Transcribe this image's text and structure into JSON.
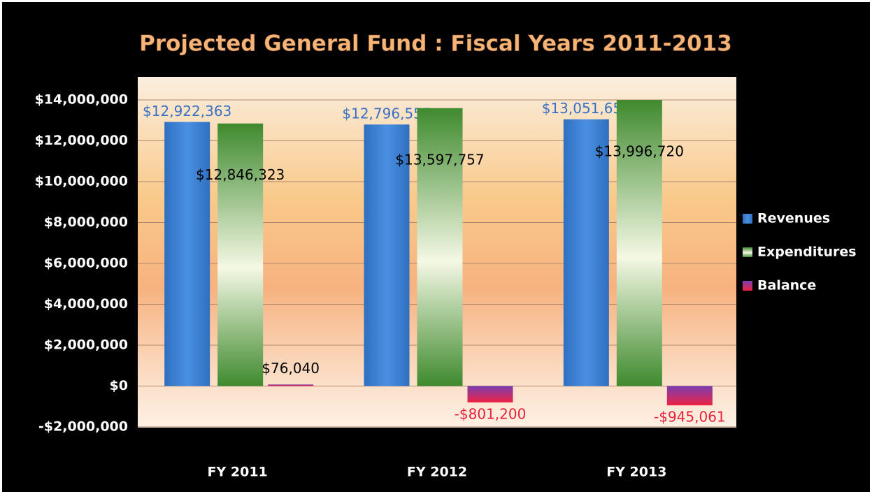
{
  "chart_data": {
    "type": "bar",
    "title": "Projected General Fund : Fiscal Years 2011-2013",
    "categories": [
      "FY 2011",
      "FY 2012",
      "FY 2013"
    ],
    "series": [
      {
        "name": "Revenues",
        "color": "#3a7fd0",
        "values": [
          12922363,
          12796557,
          13051659
        ],
        "value_labels": [
          "$12,922,363",
          "$12,796,557",
          "$13,051,659"
        ]
      },
      {
        "name": "Expenditures",
        "color": "#4e9a38",
        "values": [
          12846323,
          13597757,
          13996720
        ],
        "value_labels": [
          "$12,846,323",
          "$13,597,757",
          "$13,996,720"
        ]
      },
      {
        "name": "Balance",
        "color": "#b03070",
        "values": [
          76040,
          -801200,
          -945061
        ],
        "value_labels": [
          "$76,040",
          "-$801,200",
          "-$945,061"
        ]
      }
    ],
    "ylim": [
      -2000000,
      14000000
    ],
    "yticks": [
      {
        "value": -2000000,
        "label": "-$2,000,000"
      },
      {
        "value": 0,
        "label": "$0"
      },
      {
        "value": 2000000,
        "label": "$2,000,000"
      },
      {
        "value": 4000000,
        "label": "$4,000,000"
      },
      {
        "value": 6000000,
        "label": "$6,000,000"
      },
      {
        "value": 8000000,
        "label": "$8,000,000"
      },
      {
        "value": 10000000,
        "label": "$10,000,000"
      },
      {
        "value": 12000000,
        "label": "$12,000,000"
      },
      {
        "value": 14000000,
        "label": "$14,000,000"
      }
    ],
    "grid": true,
    "legend": "right"
  }
}
